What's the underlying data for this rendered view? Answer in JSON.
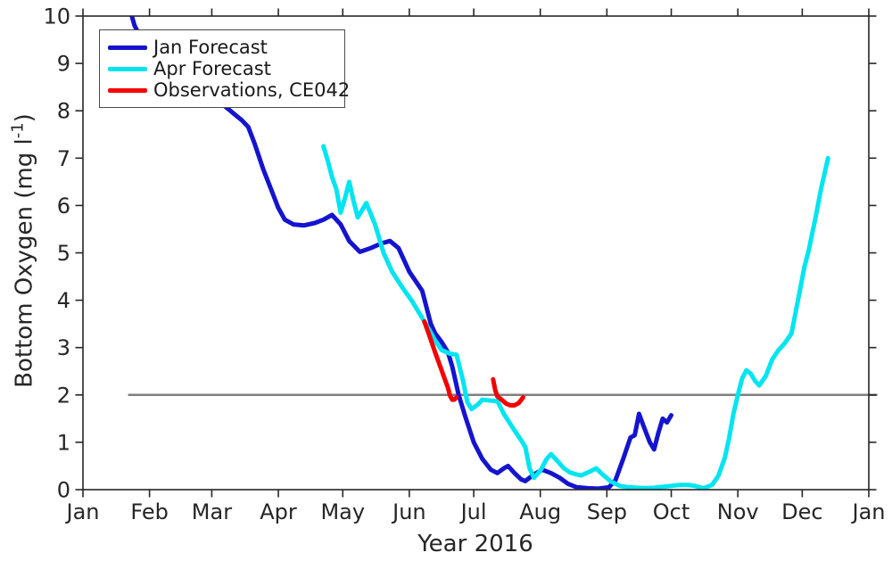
{
  "figure": {
    "background": "#ffffff",
    "axis_color": "#262626",
    "legend": [
      {
        "label": "Jan Forecast",
        "color": "#1414cf"
      },
      {
        "label": "Apr Forecast",
        "color": "#00e5f0"
      },
      {
        "label": "Observations, CE042",
        "color": "#f40000"
      }
    ],
    "ylabel_parts": {
      "pre": "Bottom Oxygen (mg l",
      "sup": "-1",
      "post": ")"
    }
  },
  "chart_data": {
    "type": "line",
    "title": "",
    "xlabel": "Year 2016",
    "ylabel": "Bottom Oxygen (mg l⁻¹)",
    "x_unit": "day_of_year_2016",
    "xlim_days": [
      0,
      366
    ],
    "ylim": [
      0,
      10
    ],
    "yticks": [
      0,
      1,
      2,
      3,
      4,
      5,
      6,
      7,
      8,
      9,
      10
    ],
    "xticks": {
      "labels": [
        "Jan",
        "Feb",
        "Mar",
        "Apr",
        "May",
        "Jun",
        "Jul",
        "Aug",
        "Sep",
        "Oct",
        "Nov",
        "Dec",
        "Jan"
      ],
      "days": [
        0,
        31,
        60,
        91,
        121,
        152,
        182,
        213,
        244,
        274,
        305,
        335,
        366
      ]
    },
    "grid": false,
    "legend_position": "top-left",
    "reference_line": {
      "y": 2,
      "color": "#7f7f7f",
      "x_start_day": 21,
      "x_end_day": 370
    },
    "series": [
      {
        "name": "Jan Forecast",
        "color": "#1414cf",
        "width": 5,
        "segments": [
          [
            [
              19,
              10.6
            ],
            [
              24,
              9.8
            ],
            [
              28,
              9.45
            ],
            [
              35,
              9.1
            ],
            [
              45,
              8.7
            ],
            [
              55,
              8.45
            ],
            [
              62,
              8.25
            ],
            [
              66,
              8.1
            ],
            [
              70,
              7.95
            ],
            [
              74,
              7.8
            ],
            [
              77,
              7.66
            ],
            [
              80,
              7.3
            ],
            [
              84,
              6.76
            ],
            [
              88,
              6.3
            ],
            [
              91,
              5.95
            ],
            [
              94,
              5.7
            ],
            [
              98,
              5.6
            ],
            [
              103,
              5.58
            ],
            [
              108,
              5.63
            ],
            [
              112,
              5.7
            ],
            [
              116,
              5.8
            ],
            [
              120,
              5.6
            ],
            [
              124,
              5.25
            ],
            [
              129,
              5.02
            ],
            [
              134,
              5.1
            ],
            [
              139,
              5.2
            ],
            [
              143,
              5.25
            ],
            [
              147,
              5.1
            ],
            [
              152,
              4.6
            ],
            [
              158,
              4.2
            ],
            [
              162,
              3.5
            ],
            [
              164,
              3.3
            ],
            [
              167,
              3.12
            ],
            [
              170,
              2.9
            ],
            [
              172,
              2.6
            ],
            [
              175,
              2.0
            ],
            [
              178,
              1.55
            ],
            [
              182,
              1.0
            ],
            [
              186,
              0.65
            ],
            [
              190,
              0.42
            ],
            [
              193,
              0.35
            ],
            [
              196,
              0.45
            ],
            [
              198,
              0.5
            ],
            [
              201,
              0.35
            ],
            [
              204,
              0.22
            ],
            [
              206,
              0.18
            ],
            [
              210,
              0.32
            ],
            [
              214,
              0.42
            ],
            [
              218,
              0.35
            ],
            [
              222,
              0.25
            ],
            [
              226,
              0.12
            ],
            [
              230,
              0.05
            ],
            [
              235,
              0.03
            ],
            [
              240,
              0.02
            ],
            [
              245,
              0.05
            ],
            [
              248,
              0.2
            ],
            [
              252,
              0.7
            ],
            [
              255,
              1.1
            ],
            [
              257,
              1.15
            ],
            [
              259,
              1.6
            ],
            [
              261,
              1.35
            ],
            [
              264,
              1.0
            ],
            [
              266,
              0.85
            ],
            [
              268,
              1.2
            ],
            [
              270,
              1.5
            ],
            [
              272,
              1.42
            ],
            [
              274,
              1.57
            ]
          ]
        ]
      },
      {
        "name": "Apr Forecast",
        "color": "#00e5f0",
        "width": 5,
        "segments": [
          [
            [
              112,
              7.25
            ],
            [
              114,
              6.95
            ],
            [
              116,
              6.6
            ],
            [
              118,
              6.35
            ],
            [
              120,
              5.85
            ],
            [
              122,
              6.15
            ],
            [
              124,
              6.5
            ],
            [
              126,
              6.1
            ],
            [
              128,
              5.75
            ],
            [
              130,
              5.9
            ],
            [
              132,
              6.05
            ],
            [
              136,
              5.6
            ],
            [
              140,
              5.0
            ],
            [
              144,
              4.6
            ],
            [
              149,
              4.25
            ],
            [
              153,
              4.0
            ],
            [
              157,
              3.7
            ],
            [
              161,
              3.4
            ],
            [
              164,
              3.15
            ],
            [
              167,
              2.95
            ],
            [
              171,
              2.87
            ],
            [
              174,
              2.85
            ],
            [
              177,
              2.3
            ],
            [
              179,
              1.85
            ],
            [
              181,
              1.7
            ],
            [
              184,
              1.8
            ],
            [
              186,
              1.9
            ],
            [
              190,
              1.88
            ],
            [
              193,
              1.87
            ],
            [
              196,
              1.6
            ],
            [
              201,
              1.25
            ],
            [
              204,
              1.05
            ],
            [
              206,
              0.9
            ],
            [
              208,
              0.45
            ],
            [
              210,
              0.25
            ],
            [
              213,
              0.4
            ],
            [
              216,
              0.65
            ],
            [
              218,
              0.75
            ],
            [
              221,
              0.6
            ],
            [
              224,
              0.45
            ],
            [
              227,
              0.36
            ],
            [
              230,
              0.32
            ],
            [
              232,
              0.3
            ],
            [
              236,
              0.38
            ],
            [
              239,
              0.45
            ],
            [
              242,
              0.32
            ],
            [
              246,
              0.17
            ],
            [
              250,
              0.08
            ],
            [
              254,
              0.05
            ],
            [
              258,
              0.04
            ],
            [
              262,
              0.03
            ],
            [
              266,
              0.04
            ],
            [
              270,
              0.06
            ],
            [
              274,
              0.08
            ],
            [
              278,
              0.1
            ],
            [
              282,
              0.1
            ],
            [
              285,
              0.08
            ],
            [
              289,
              0.03
            ],
            [
              293,
              0.1
            ],
            [
              296,
              0.3
            ],
            [
              299,
              0.68
            ],
            [
              301,
              1.1
            ],
            [
              303,
              1.62
            ],
            [
              305,
              2.0
            ],
            [
              307,
              2.35
            ],
            [
              309,
              2.52
            ],
            [
              311,
              2.45
            ],
            [
              313,
              2.3
            ],
            [
              315,
              2.2
            ],
            [
              318,
              2.4
            ],
            [
              321,
              2.75
            ],
            [
              324,
              2.95
            ],
            [
              327,
              3.1
            ],
            [
              330,
              3.3
            ],
            [
              333,
              4.0
            ],
            [
              336,
              4.7
            ],
            [
              338,
              5.05
            ],
            [
              341,
              5.7
            ],
            [
              344,
              6.4
            ],
            [
              347,
              7.0
            ]
          ]
        ]
      },
      {
        "name": "Observations, CE042",
        "color": "#f40000",
        "width": 5,
        "segments": [
          [
            [
              159,
              3.55
            ],
            [
              161,
              3.3
            ],
            [
              164,
              2.9
            ],
            [
              166,
              2.65
            ],
            [
              168,
              2.4
            ],
            [
              170,
              2.15
            ],
            [
              171,
              1.98
            ],
            [
              172,
              1.9
            ],
            [
              173,
              1.9
            ],
            [
              174,
              1.95
            ]
          ],
          [
            [
              191,
              2.33
            ],
            [
              192,
              2.1
            ],
            [
              193,
              1.97
            ],
            [
              195,
              1.9
            ],
            [
              197,
              1.82
            ],
            [
              199,
              1.78
            ],
            [
              201,
              1.78
            ],
            [
              203,
              1.83
            ],
            [
              205,
              1.95
            ]
          ]
        ]
      }
    ]
  }
}
